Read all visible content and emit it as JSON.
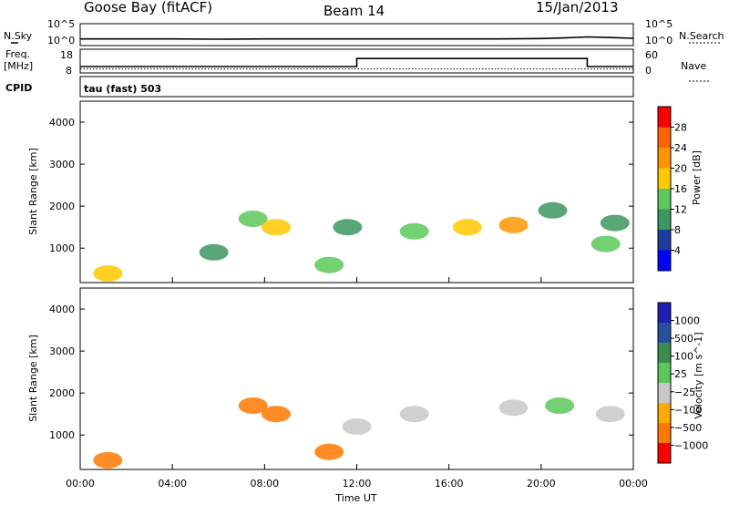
{
  "header": {
    "station": "Goose Bay (fitACF)",
    "beam": "Beam 14",
    "date": "15/Jan/2013"
  },
  "labels": {
    "nsky": "N.Sky",
    "nsearch": "N.Search",
    "freq": "Freq.",
    "freq_unit": "[MHz]",
    "nave": "Nave",
    "cpid_label": "CPID",
    "cpid_value": "tau (fast) 503",
    "noise_ticks_left": [
      "10^5",
      "10^0"
    ],
    "noise_ticks_right": [
      "10^5",
      "10^0"
    ],
    "freq_ticks": [
      "18",
      "8"
    ],
    "nave_ticks": [
      "60",
      "0"
    ]
  },
  "colors": {
    "power_scale": [
      "#0000ff",
      "#1e3ca0",
      "#3c9660",
      "#5ac85a",
      "#ffc800",
      "#ff9600",
      "#ff6400",
      "#ff0000"
    ],
    "velocity_scale": [
      "#1e1eb4",
      "#2850a0",
      "#3c8c50",
      "#5ac85a",
      "#c8c8c8",
      "#ffaa00",
      "#ff7800",
      "#ff0000"
    ]
  },
  "chart_data": [
    {
      "type": "line",
      "panel": "noise",
      "x_range": [
        "00:00",
        "24:00"
      ],
      "series": [
        {
          "name": "N.Sky",
          "x": [
            0,
            2,
            4,
            6,
            8,
            10,
            12,
            14,
            16,
            18,
            20,
            21,
            22,
            23,
            24
          ],
          "values": [
            1.2,
            1.2,
            1.2,
            1.1,
            1.2,
            1.2,
            1.2,
            1.2,
            1.2,
            1.2,
            1.3,
            1.5,
            1.8,
            1.6,
            1.4
          ]
        },
        {
          "name": "N.Search",
          "x": [
            0,
            24
          ],
          "values": [
            0,
            0
          ]
        }
      ]
    },
    {
      "type": "line",
      "panel": "frequency_nave",
      "series": [
        {
          "name": "Freq.",
          "x": [
            0,
            12,
            12,
            22,
            22,
            24
          ],
          "values": [
            10.5,
            10.5,
            16,
            16,
            10.5,
            10.5
          ]
        },
        {
          "name": "Nave",
          "x": [
            0,
            24
          ],
          "values": [
            5,
            5
          ]
        }
      ]
    },
    {
      "type": "heatmap",
      "panel": "power",
      "ylabel": "Slant Range [km]",
      "yticks": [
        1000,
        2000,
        3000,
        4000
      ],
      "ylim": [
        180,
        4500
      ],
      "colorbar": {
        "label": "Power [dB]",
        "ticks": [
          4,
          8,
          12,
          16,
          20,
          24,
          28
        ]
      },
      "regions": [
        {
          "x": 1.2,
          "y": 400,
          "value": 16
        },
        {
          "x": 5.8,
          "y": 900,
          "value": 10
        },
        {
          "x": 7.5,
          "y": 1700,
          "value": 14
        },
        {
          "x": 8.5,
          "y": 1500,
          "value": 16
        },
        {
          "x": 10.8,
          "y": 600,
          "value": 12
        },
        {
          "x": 11.6,
          "y": 1500,
          "value": 8
        },
        {
          "x": 14.5,
          "y": 1400,
          "value": 14
        },
        {
          "x": 16.8,
          "y": 1500,
          "value": 18
        },
        {
          "x": 18.8,
          "y": 1550,
          "value": 22
        },
        {
          "x": 20.5,
          "y": 1900,
          "value": 8
        },
        {
          "x": 22.8,
          "y": 1100,
          "value": 12
        },
        {
          "x": 23.2,
          "y": 1600,
          "value": 10
        }
      ]
    },
    {
      "type": "heatmap",
      "panel": "velocity",
      "ylabel": "Slant Range [km]",
      "yticks": [
        1000,
        2000,
        3000,
        4000
      ],
      "ylim": [
        180,
        4500
      ],
      "xlabel": "Time UT",
      "xticks": [
        "00:00",
        "04:00",
        "08:00",
        "12:00",
        "16:00",
        "20:00",
        "00:00"
      ],
      "colorbar": {
        "label": "Velocity [m s^-1]",
        "ticks": [
          "1000",
          "500",
          "100",
          "25",
          "−25",
          "−100",
          "−500",
          "−1000"
        ]
      },
      "regions": [
        {
          "x": 1.2,
          "y": 400,
          "value": -150
        },
        {
          "x": 7.5,
          "y": 1700,
          "value": -200
        },
        {
          "x": 8.5,
          "y": 1500,
          "value": -200
        },
        {
          "x": 10.8,
          "y": 600,
          "value": -150
        },
        {
          "x": 12.0,
          "y": 1200,
          "value": 0
        },
        {
          "x": 14.5,
          "y": 1500,
          "value": 0
        },
        {
          "x": 18.8,
          "y": 1650,
          "value": 0
        },
        {
          "x": 20.8,
          "y": 1700,
          "value": 80
        },
        {
          "x": 23.0,
          "y": 1500,
          "value": 0
        }
      ]
    }
  ]
}
